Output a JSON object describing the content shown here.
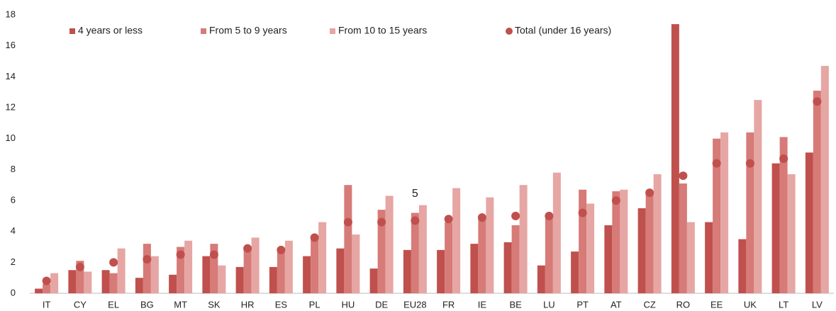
{
  "chart_data": {
    "type": "bar",
    "categories": [
      "IT",
      "CY",
      "EL",
      "BG",
      "MT",
      "SK",
      "HR",
      "ES",
      "PL",
      "HU",
      "DE",
      "EU28",
      "FR",
      "IE",
      "BE",
      "LU",
      "PT",
      "AT",
      "CZ",
      "RO",
      "EE",
      "UK",
      "LT",
      "LV"
    ],
    "series": [
      {
        "name": "4 years or less",
        "color": "#c0504d",
        "values": [
          0.3,
          1.5,
          1.5,
          1.0,
          1.2,
          2.4,
          1.7,
          1.7,
          2.4,
          2.9,
          1.6,
          2.8,
          2.8,
          3.2,
          3.3,
          1.8,
          2.7,
          4.4,
          5.5,
          17.4,
          4.6,
          3.5,
          8.4,
          9.1
        ]
      },
      {
        "name": "From 5 to 9 years",
        "color": "#d67b78",
        "values": [
          0.6,
          2.1,
          1.3,
          3.2,
          3.0,
          3.2,
          2.9,
          2.8,
          3.6,
          7.0,
          5.4,
          5.2,
          4.6,
          4.9,
          4.4,
          5.0,
          6.7,
          6.6,
          6.4,
          7.1,
          10.0,
          10.4,
          10.1,
          13.1
        ]
      },
      {
        "name": "From 10 to 15 years",
        "color": "#e6a6a4",
        "values": [
          1.3,
          1.4,
          2.9,
          2.4,
          3.4,
          1.8,
          3.6,
          3.4,
          4.6,
          3.8,
          6.3,
          5.7,
          6.8,
          6.2,
          7.0,
          7.8,
          5.8,
          6.7,
          7.7,
          4.6,
          10.4,
          12.5,
          7.7,
          14.7
        ]
      },
      {
        "name": "Total (under 16 years)",
        "color": "#c0504d",
        "type": "scatter",
        "values": [
          0.8,
          1.7,
          2.0,
          2.2,
          2.5,
          2.5,
          2.9,
          2.8,
          3.6,
          4.6,
          4.6,
          4.7,
          4.8,
          4.9,
          5.0,
          5.0,
          5.2,
          6.0,
          6.5,
          7.6,
          8.4,
          8.4,
          8.7,
          12.4
        ],
        "value_labels": [
          null,
          null,
          null,
          null,
          null,
          null,
          null,
          null,
          null,
          null,
          null,
          "5",
          null,
          null,
          null,
          null,
          null,
          null,
          null,
          null,
          null,
          null,
          null,
          null
        ]
      }
    ],
    "ylim": [
      0,
      18
    ],
    "yticks": [
      0,
      2,
      4,
      6,
      8,
      10,
      12,
      14,
      16,
      18
    ],
    "grid": false,
    "legend": "top"
  }
}
